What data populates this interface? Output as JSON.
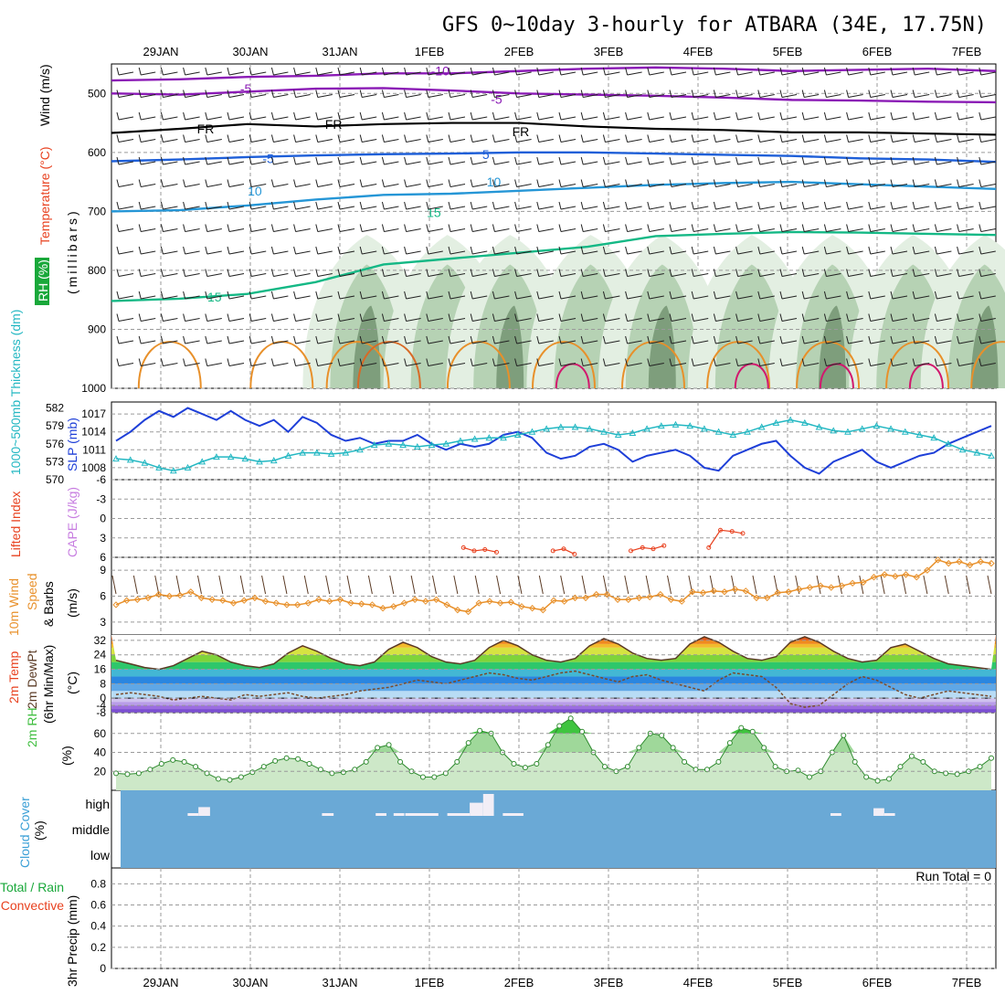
{
  "title": "GFS 0~10day 3-hourly for ATBARA (34E, 17.75N)",
  "dates": [
    "29JAN",
    "30JAN",
    "31JAN",
    "1FEB",
    "2FEB",
    "3FEB",
    "4FEB",
    "5FEB",
    "6FEB",
    "7FEB"
  ],
  "colors": {
    "temp_label": "#e8411f",
    "rh_green": "#19a83a",
    "cape": "#c77de0",
    "lifted": "#e8411f",
    "slp": "#1e3fd8",
    "thickness": "#22b7c2",
    "wind_orange": "#e8902a",
    "cloud_blue": "#6aa9d6",
    "cloud_label": "#3a9fd6",
    "precip_green": "#19a83a",
    "precip_red": "#e8411f",
    "rh2m": "#3fbe3f"
  },
  "chart_data": [
    {
      "type": "heatmap",
      "panel": "upper_air",
      "ylabel_parts": [
        "RH (%)",
        "Temperature (°C)",
        "Wind (m/s)"
      ],
      "yunit_label": "(millibars)",
      "yticks": [
        500,
        600,
        700,
        800,
        900,
        1000
      ],
      "ylim": [
        450,
        1000
      ],
      "contour_labels": [
        {
          "text": "-10",
          "t": 3.12,
          "p": 462
        },
        {
          "text": "-5",
          "t": 0.95,
          "p": 492
        },
        {
          "text": "-5",
          "t": 3.75,
          "p": 510
        },
        {
          "text": "FR",
          "t": 0.5,
          "p": 560
        },
        {
          "text": "FR",
          "t": 1.93,
          "p": 552
        },
        {
          "text": "FR",
          "t": 4.02,
          "p": 565
        },
        {
          "text": "-5",
          "t": 1.2,
          "p": 610
        },
        {
          "text": "5",
          "t": 3.63,
          "p": 603
        },
        {
          "text": "10",
          "t": 1.05,
          "p": 665
        },
        {
          "text": "10",
          "t": 3.72,
          "p": 650
        },
        {
          "text": "15",
          "t": 3.05,
          "p": 702
        },
        {
          "text": "15",
          "t": 0.6,
          "p": 845
        }
      ],
      "isotherms": [
        {
          "temp": "-10",
          "color": "#8a1ab5",
          "p": [
            478,
            476,
            472,
            470,
            466,
            466,
            462,
            458,
            456,
            458,
            462,
            460,
            458,
            462
          ]
        },
        {
          "temp": "-5",
          "color": "#8a1ab5",
          "p": [
            500,
            502,
            497,
            492,
            491,
            495,
            500,
            502,
            504,
            507,
            511,
            512,
            514,
            515
          ]
        },
        {
          "temp": "FR",
          "color": "#000000",
          "p": [
            567,
            560,
            552,
            556,
            552,
            550,
            550,
            556,
            560,
            562,
            566,
            566,
            568,
            570
          ]
        },
        {
          "temp": "5",
          "color": "#1e5fd8",
          "p": [
            615,
            612,
            608,
            605,
            603,
            602,
            600,
            600,
            602,
            604,
            606,
            610,
            612,
            616
          ]
        },
        {
          "temp": "10",
          "color": "#2596d6",
          "p": [
            700,
            698,
            690,
            680,
            672,
            670,
            665,
            660,
            655,
            652,
            650,
            654,
            658,
            662
          ]
        },
        {
          "temp": "15",
          "color": "#14b885",
          "p": [
            852,
            848,
            840,
            820,
            790,
            780,
            770,
            760,
            742,
            738,
            735,
            736,
            738,
            740
          ]
        }
      ],
      "rh_shading": [
        {
          "level": "RH 50-70",
          "color": "#e3efe2"
        },
        {
          "level": "RH 70-90",
          "color": "#b6d2b4"
        },
        {
          "level": "RH >90",
          "color": "#7e9e7c"
        }
      ]
    },
    {
      "type": "line",
      "panel": "slp_thickness",
      "ylabel_left": "1000~500mb Thickness (dm)",
      "ylabel_right": "SLP (mb)",
      "yticks_thickness": [
        570,
        573,
        576,
        579,
        582
      ],
      "yticks_slp": [
        1008,
        1011,
        1014,
        1017
      ],
      "series": [
        {
          "name": "SLP",
          "values": [
            1012.5,
            1014,
            1016,
            1017.5,
            1016.5,
            1018,
            1017,
            1016,
            1017.5,
            1016,
            1015,
            1016,
            1014,
            1016.5,
            1015.5,
            1013.5,
            1012.5,
            1013,
            1012,
            1012.5,
            1012.5,
            1013.5,
            1012,
            1011,
            1012,
            1011.5,
            1012,
            1013.5,
            1014,
            1013,
            1010.5,
            1009.5,
            1010,
            1011.5,
            1012,
            1011,
            1009,
            1010,
            1010.5,
            1011,
            1010,
            1008,
            1007.5,
            1010,
            1011,
            1012,
            1012.5,
            1010,
            1008,
            1007,
            1009,
            1010,
            1011,
            1009,
            1008,
            1009,
            1010,
            1010.5,
            1012,
            1013,
            1014,
            1015
          ],
          "x_days": [
            0.0,
            0.12,
            0.25,
            0.38,
            0.5,
            0.62,
            0.75,
            0.88,
            1.0,
            1.12,
            1.25,
            1.38,
            1.5,
            1.62,
            1.75,
            1.88,
            2.0,
            2.12,
            2.25,
            2.38,
            2.5,
            2.62,
            2.75,
            2.88,
            3.0,
            3.12,
            3.25,
            3.38,
            3.5,
            3.62,
            3.75,
            3.88,
            4.0,
            4.12,
            4.25,
            4.38,
            4.5,
            4.62,
            4.75,
            4.88,
            5.0,
            5.12,
            5.25,
            5.38,
            5.5,
            5.62,
            5.75,
            5.88,
            6.0,
            6.12,
            6.25,
            6.38,
            6.5,
            6.62,
            6.75,
            6.88,
            7.0,
            7.12,
            7.25,
            7.38,
            7.5,
            7.62
          ]
        },
        {
          "name": "Thickness",
          "values": [
            573.5,
            573.3,
            572.8,
            572,
            571.5,
            572,
            573,
            573.8,
            573.8,
            573.5,
            573,
            573.2,
            574,
            574.5,
            574.5,
            574.3,
            574.5,
            575,
            575.8,
            576,
            575.8,
            575.5,
            575.8,
            576,
            576.5,
            576.8,
            577,
            577,
            577.5,
            578,
            578.5,
            578.8,
            578.8,
            578.5,
            578,
            577.5,
            577.8,
            578.5,
            579,
            579.2,
            579,
            578.5,
            578,
            577.5,
            578,
            578.8,
            579.5,
            580,
            579.5,
            578.8,
            578.2,
            578,
            578.5,
            579,
            578.5,
            578,
            577.5,
            577,
            576,
            575,
            574.5,
            574
          ],
          "x_days": [
            0.0,
            0.12,
            0.25,
            0.38,
            0.5,
            0.62,
            0.75,
            0.88,
            1.0,
            1.12,
            1.25,
            1.38,
            1.5,
            1.62,
            1.75,
            1.88,
            2.0,
            2.12,
            2.25,
            2.38,
            2.5,
            2.62,
            2.75,
            2.88,
            3.0,
            3.12,
            3.25,
            3.38,
            3.5,
            3.62,
            3.75,
            3.88,
            4.0,
            4.12,
            4.25,
            4.38,
            4.5,
            4.62,
            4.75,
            4.88,
            5.0,
            5.12,
            5.25,
            5.38,
            5.5,
            5.62,
            5.75,
            5.88,
            6.0,
            6.12,
            6.25,
            6.38,
            6.5,
            6.62,
            6.75,
            6.88,
            7.0,
            7.12,
            7.25,
            7.38,
            7.5,
            7.62
          ]
        }
      ]
    },
    {
      "type": "line",
      "panel": "cape_li",
      "ylabel_parts": [
        "Lifted Index",
        "CAPE (J/kg)"
      ],
      "yticks": [
        "-6",
        "-3",
        "0",
        "3",
        "6"
      ],
      "ylim": [
        -6,
        6
      ],
      "series": [
        {
          "name": "Lifted Index",
          "segments": [
            {
              "x": [
                4.38,
                4.5,
                4.62,
                4.75
              ],
              "y": [
                4.5,
                5.0,
                4.8,
                5.2
              ]
            },
            {
              "x": [
                5.38,
                5.5,
                5.62
              ],
              "y": [
                5.0,
                4.7,
                5.5
              ]
            },
            {
              "x": [
                6.25,
                6.38,
                6.5,
                6.62
              ],
              "y": [
                5.0,
                4.5,
                4.7,
                4.2
              ]
            },
            {
              "x": [
                7.12,
                7.25,
                7.38,
                7.5
              ],
              "y": [
                4.5,
                1.8,
                2.0,
                2.3
              ]
            }
          ]
        }
      ]
    },
    {
      "type": "line",
      "panel": "wind10m",
      "ylabel_parts": [
        "10m Wind",
        "Speed",
        "& Barbs"
      ],
      "yunit": "(m/s)",
      "yticks": [
        3,
        6,
        9
      ],
      "ylim": [
        1.5,
        10.5
      ],
      "series": [
        {
          "name": "10m Wind Speed",
          "values": [
            5,
            5.5,
            5.6,
            5.8,
            6.2,
            6.0,
            6.1,
            6.5,
            5.8,
            5.6,
            5.5,
            5.2,
            5.5,
            5.8,
            5.4,
            5.2,
            5.0,
            5.0,
            5.2,
            5.6,
            5.4,
            5.6,
            5.2,
            5.1,
            5.0,
            4.6,
            4.8,
            5.2,
            5.6,
            5.4,
            5.6,
            5.0,
            4.4,
            4.2,
            5.2,
            5.4,
            5.2,
            5.3,
            4.8,
            4.6,
            4.4,
            5.5,
            5.4,
            5.8,
            5.8,
            6.2,
            6.2,
            5.6,
            5.6,
            5.8,
            5.9,
            6.2,
            5.6,
            5.4,
            6.5,
            6.4,
            6.6,
            6.5,
            6.8,
            6.6,
            5.8,
            5.8,
            6.4,
            6.5,
            6.8,
            7.0,
            7.2,
            7.0,
            7.2,
            7.5,
            7.6,
            8.2,
            8.5,
            8.3,
            8.5,
            8.2,
            9.0,
            10.2,
            9.8,
            10.0,
            9.6,
            10.0,
            9.8
          ],
          "x_start": 0,
          "x_step": 0.12
        }
      ]
    },
    {
      "type": "area",
      "panel": "temp2m",
      "ylabel_parts": [
        "2m Temp",
        "2m DewPt",
        "(6hr Min/Max)"
      ],
      "yunit": "(°C)",
      "yticks": [
        -8,
        -4,
        0,
        8,
        16,
        24,
        32
      ],
      "ylim": [
        -8,
        35
      ],
      "series": [
        {
          "name": "2m Temp",
          "values": [
            21,
            19,
            17,
            16,
            18,
            22,
            26,
            24,
            20,
            18,
            17,
            19,
            25,
            29,
            26,
            22,
            19,
            18,
            20,
            27,
            31,
            28,
            23,
            20,
            19,
            21,
            28,
            32,
            29,
            24,
            21,
            20,
            22,
            29,
            33,
            30,
            25,
            22,
            21,
            22,
            30,
            34,
            31,
            26,
            22,
            21,
            23,
            31,
            34,
            31,
            26,
            22,
            20,
            21,
            28,
            30,
            26,
            22,
            19,
            18,
            17,
            16
          ],
          "x_days_from": 0,
          "x_step": 0.125
        },
        {
          "name": "2m DewPt",
          "values": [
            2,
            3,
            2,
            1,
            -1,
            0,
            1,
            0,
            -1,
            2,
            1,
            2,
            3,
            1,
            0,
            1,
            2,
            4,
            5,
            6,
            8,
            10,
            9,
            8,
            10,
            12,
            14,
            13,
            11,
            10,
            12,
            14,
            15,
            13,
            11,
            9,
            12,
            13,
            10,
            8,
            6,
            4,
            10,
            14,
            13,
            12,
            6,
            -3,
            -5,
            -4,
            2,
            8,
            12,
            10,
            6,
            2,
            0,
            2,
            4,
            3,
            2,
            1
          ],
          "x_days_from": 0,
          "x_step": 0.125
        }
      ]
    },
    {
      "type": "area",
      "panel": "rh2m",
      "ylabel": "2m RH",
      "yunit": "(%)",
      "yticks": [
        20,
        40,
        60
      ],
      "ylim": [
        0,
        82
      ],
      "series": [
        {
          "name": "2m RH",
          "values": [
            18,
            17,
            18,
            22,
            28,
            32,
            30,
            25,
            18,
            12,
            11,
            14,
            19,
            25,
            31,
            34,
            33,
            28,
            22,
            18,
            19,
            22,
            30,
            45,
            48,
            30,
            20,
            14,
            14,
            18,
            30,
            50,
            63,
            60,
            40,
            28,
            24,
            28,
            48,
            68,
            76,
            62,
            40,
            25,
            20,
            25,
            45,
            60,
            58,
            45,
            30,
            22,
            22,
            30,
            50,
            66,
            62,
            45,
            25,
            20,
            21,
            14,
            20,
            40,
            58,
            30,
            14,
            10,
            12,
            25,
            36,
            30,
            20,
            18,
            17,
            20,
            25,
            34
          ],
          "x_days_from": 0,
          "x_step": 0.0975
        }
      ]
    },
    {
      "type": "bar",
      "panel": "cloud",
      "ylabel": "Cloud Cover",
      "yunit": "(%)",
      "layer_labels": [
        "high",
        "middle",
        "low"
      ],
      "high_cover": [
        {
          "from": 0.3,
          "to": 0.42,
          "level": 10
        },
        {
          "from": 0.42,
          "to": 0.55,
          "level": 40
        },
        {
          "from": 1.8,
          "to": 1.93,
          "level": 10
        },
        {
          "from": 2.4,
          "to": 2.52,
          "level": 10
        },
        {
          "from": 2.6,
          "to": 2.72,
          "level": 10
        },
        {
          "from": 2.73,
          "to": 3.1,
          "level": 10
        },
        {
          "from": 3.2,
          "to": 3.45,
          "level": 10
        },
        {
          "from": 3.45,
          "to": 3.6,
          "level": 60
        },
        {
          "from": 3.6,
          "to": 3.72,
          "level": 100
        },
        {
          "from": 3.82,
          "to": 4.05,
          "level": 10
        },
        {
          "from": 7.48,
          "to": 7.6,
          "level": 10
        },
        {
          "from": 7.96,
          "to": 8.08,
          "level": 35
        },
        {
          "from": 8.08,
          "to": 8.2,
          "level": 10
        }
      ]
    },
    {
      "type": "bar",
      "panel": "precip",
      "ylabel_parts": [
        "Total / Rain",
        "Convective",
        "3hr Precip (mm)"
      ],
      "yticks": [
        0,
        0.2,
        0.4,
        0.6,
        0.8
      ],
      "ylim": [
        0,
        0.95
      ],
      "run_total_label": "Run Total = 0",
      "values": []
    }
  ]
}
